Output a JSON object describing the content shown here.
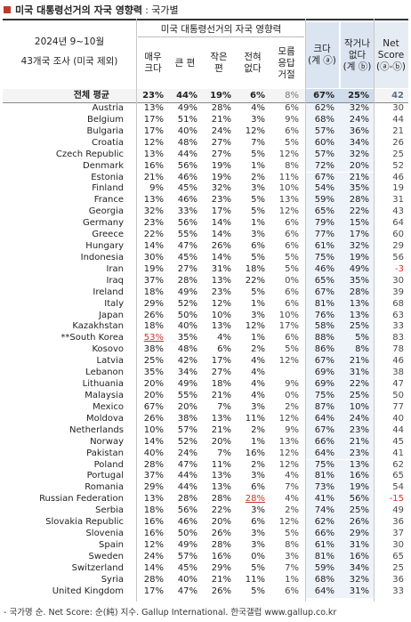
{
  "title": "미국 대통령선거의 자국 영향력",
  "subtitle": ": 국가별",
  "header": {
    "survey_line1": "2024년 9~10월",
    "survey_line2": "43개국 조사 (미국 제외)",
    "group": "미국 대통령선거의 자국 영향력",
    "cols": [
      "매우\n크다",
      "큰 편",
      "작은\n편",
      "전혀\n없다",
      "모름\n응답\n거절",
      "크다\n(계 ⓐ)",
      "작거나\n없다\n(계 ⓑ)",
      "Net\nScore\n(ⓐ-ⓑ)"
    ]
  },
  "chart_data": {
    "type": "table",
    "average": {
      "country": "전체 평균",
      "values": [
        "23%",
        "44%",
        "19%",
        "6%",
        "8%",
        "67%",
        "25%",
        "42"
      ]
    },
    "rows": [
      {
        "country": "Austria",
        "values": [
          "13%",
          "49%",
          "28%",
          "4%",
          "6%",
          "62%",
          "32%",
          "30"
        ]
      },
      {
        "country": "Belgium",
        "values": [
          "17%",
          "51%",
          "21%",
          "3%",
          "9%",
          "68%",
          "24%",
          "44"
        ]
      },
      {
        "country": "Bulgaria",
        "values": [
          "17%",
          "40%",
          "24%",
          "12%",
          "6%",
          "57%",
          "36%",
          "21"
        ]
      },
      {
        "country": "Croatia",
        "values": [
          "12%",
          "48%",
          "27%",
          "7%",
          "5%",
          "60%",
          "34%",
          "26"
        ]
      },
      {
        "country": "Czech Republic",
        "values": [
          "13%",
          "44%",
          "27%",
          "5%",
          "12%",
          "57%",
          "32%",
          "25"
        ]
      },
      {
        "country": "Denmark",
        "values": [
          "16%",
          "56%",
          "19%",
          "1%",
          "8%",
          "72%",
          "20%",
          "52"
        ]
      },
      {
        "country": "Estonia",
        "values": [
          "21%",
          "46%",
          "19%",
          "2%",
          "11%",
          "67%",
          "21%",
          "46"
        ]
      },
      {
        "country": "Finland",
        "values": [
          "9%",
          "45%",
          "32%",
          "3%",
          "10%",
          "54%",
          "35%",
          "19"
        ]
      },
      {
        "country": "France",
        "values": [
          "13%",
          "46%",
          "23%",
          "5%",
          "13%",
          "59%",
          "28%",
          "31"
        ]
      },
      {
        "country": "Georgia",
        "values": [
          "32%",
          "33%",
          "17%",
          "5%",
          "12%",
          "65%",
          "22%",
          "43"
        ]
      },
      {
        "country": "Germany",
        "values": [
          "23%",
          "56%",
          "14%",
          "1%",
          "6%",
          "79%",
          "15%",
          "64"
        ]
      },
      {
        "country": "Greece",
        "values": [
          "22%",
          "55%",
          "14%",
          "3%",
          "6%",
          "77%",
          "17%",
          "60"
        ]
      },
      {
        "country": "Hungary",
        "values": [
          "14%",
          "47%",
          "26%",
          "6%",
          "6%",
          "61%",
          "32%",
          "29"
        ]
      },
      {
        "country": "Indonesia",
        "values": [
          "30%",
          "45%",
          "14%",
          "5%",
          "5%",
          "75%",
          "19%",
          "56"
        ]
      },
      {
        "country": "Iran",
        "values": [
          "19%",
          "27%",
          "31%",
          "18%",
          "5%",
          "46%",
          "49%",
          "-3"
        ]
      },
      {
        "country": "Iraq",
        "values": [
          "37%",
          "28%",
          "13%",
          "22%",
          "0%",
          "65%",
          "35%",
          "30"
        ]
      },
      {
        "country": "Ireland",
        "values": [
          "18%",
          "49%",
          "23%",
          "5%",
          "6%",
          "67%",
          "28%",
          "39"
        ]
      },
      {
        "country": "Italy",
        "values": [
          "29%",
          "52%",
          "12%",
          "1%",
          "6%",
          "81%",
          "13%",
          "68"
        ]
      },
      {
        "country": "Japan",
        "values": [
          "26%",
          "50%",
          "10%",
          "3%",
          "10%",
          "76%",
          "13%",
          "63"
        ]
      },
      {
        "country": "Kazakhstan",
        "values": [
          "18%",
          "40%",
          "13%",
          "12%",
          "17%",
          "58%",
          "25%",
          "33"
        ]
      },
      {
        "country": "**South Korea",
        "values": [
          "53%",
          "35%",
          "4%",
          "1%",
          "6%",
          "88%",
          "5%",
          "83"
        ]
      },
      {
        "country": "Kosovo",
        "values": [
          "38%",
          "48%",
          "6%",
          "2%",
          "5%",
          "86%",
          "8%",
          "78"
        ]
      },
      {
        "country": "Latvia",
        "values": [
          "25%",
          "42%",
          "17%",
          "4%",
          "12%",
          "67%",
          "21%",
          "46"
        ]
      },
      {
        "country": "Lebanon",
        "values": [
          "35%",
          "34%",
          "27%",
          "4%",
          "",
          "69%",
          "31%",
          "38"
        ]
      },
      {
        "country": "Lithuania",
        "values": [
          "20%",
          "49%",
          "18%",
          "4%",
          "9%",
          "69%",
          "22%",
          "47"
        ]
      },
      {
        "country": "Malaysia",
        "values": [
          "20%",
          "55%",
          "21%",
          "4%",
          "0%",
          "75%",
          "25%",
          "50"
        ]
      },
      {
        "country": "Mexico",
        "values": [
          "67%",
          "20%",
          "7%",
          "3%",
          "2%",
          "87%",
          "10%",
          "77"
        ]
      },
      {
        "country": "Moldova",
        "values": [
          "26%",
          "38%",
          "13%",
          "11%",
          "12%",
          "64%",
          "24%",
          "40"
        ]
      },
      {
        "country": "Netherlands",
        "values": [
          "10%",
          "57%",
          "21%",
          "2%",
          "9%",
          "67%",
          "23%",
          "44"
        ]
      },
      {
        "country": "Norway",
        "values": [
          "14%",
          "52%",
          "20%",
          "1%",
          "13%",
          "66%",
          "21%",
          "45"
        ]
      },
      {
        "country": "Pakistan",
        "values": [
          "40%",
          "24%",
          "7%",
          "16%",
          "12%",
          "64%",
          "23%",
          "41"
        ]
      },
      {
        "country": "Poland",
        "values": [
          "28%",
          "47%",
          "11%",
          "2%",
          "12%",
          "75%",
          "13%",
          "62"
        ]
      },
      {
        "country": "Portugal",
        "values": [
          "37%",
          "44%",
          "13%",
          "3%",
          "4%",
          "81%",
          "16%",
          "65"
        ]
      },
      {
        "country": "Romania",
        "values": [
          "29%",
          "44%",
          "13%",
          "6%",
          "7%",
          "73%",
          "19%",
          "54"
        ]
      },
      {
        "country": "Russian Federation",
        "values": [
          "13%",
          "28%",
          "28%",
          "28%",
          "4%",
          "41%",
          "56%",
          "-15"
        ]
      },
      {
        "country": "Serbia",
        "values": [
          "18%",
          "56%",
          "22%",
          "3%",
          "2%",
          "74%",
          "25%",
          "49"
        ]
      },
      {
        "country": "Slovakia Republic",
        "values": [
          "16%",
          "46%",
          "20%",
          "6%",
          "12%",
          "62%",
          "26%",
          "36"
        ]
      },
      {
        "country": "Slovenia",
        "values": [
          "16%",
          "50%",
          "26%",
          "3%",
          "5%",
          "66%",
          "29%",
          "37"
        ]
      },
      {
        "country": "Spain",
        "values": [
          "12%",
          "49%",
          "28%",
          "3%",
          "8%",
          "61%",
          "31%",
          "30"
        ]
      },
      {
        "country": "Sweden",
        "values": [
          "24%",
          "57%",
          "16%",
          "0%",
          "3%",
          "81%",
          "16%",
          "65"
        ]
      },
      {
        "country": "Switzerland",
        "values": [
          "14%",
          "45%",
          "29%",
          "5%",
          "7%",
          "59%",
          "34%",
          "25"
        ]
      },
      {
        "country": "Syria",
        "values": [
          "28%",
          "40%",
          "21%",
          "11%",
          "1%",
          "68%",
          "32%",
          "36"
        ]
      },
      {
        "country": "United Kingdom",
        "values": [
          "17%",
          "47%",
          "26%",
          "5%",
          "6%",
          "64%",
          "31%",
          "33"
        ]
      }
    ],
    "highlights": [
      {
        "row": "**South Korea",
        "col": 0
      },
      {
        "row": "Russian Federation",
        "col": 3
      }
    ]
  },
  "colors": {
    "accent": "#c0392b",
    "header_blue": "#dbe5f1",
    "negative": "#d93025",
    "muted": "#777777"
  },
  "footer": "- 국가명 순. Net Score: 순(純) 지수. Gallup International. 한국갤럽 www.gallup.co.kr"
}
